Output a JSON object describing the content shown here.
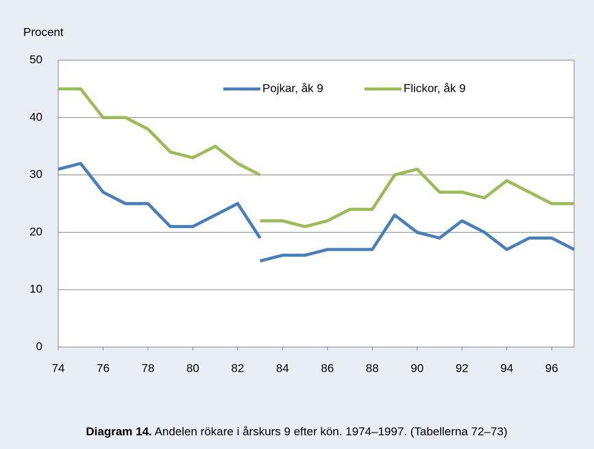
{
  "chart_data": {
    "type": "line",
    "y_label": "Procent",
    "caption_label": "Diagram 14.",
    "caption": "Andelen rökare i årskurs 9 efter kön. 1974–1997. (Tabellerna 72–73)",
    "x": [
      74,
      75,
      76,
      77,
      78,
      79,
      80,
      81,
      82,
      83,
      null,
      83,
      84,
      85,
      86,
      87,
      88,
      89,
      90,
      91,
      92,
      93,
      94,
      95,
      96,
      97
    ],
    "series": [
      {
        "name": "Pojkar, åk 9",
        "color": "#4a7ebb",
        "values": [
          31,
          32,
          27,
          25,
          25,
          21,
          21,
          23,
          25,
          19,
          null,
          15,
          16,
          16,
          17,
          17,
          17,
          23,
          20,
          19,
          22,
          20,
          17,
          19,
          19,
          17
        ]
      },
      {
        "name": "Flickor, åk 9",
        "color": "#9bbb59",
        "values": [
          45,
          45,
          40,
          40,
          38,
          34,
          33,
          35,
          32,
          30,
          null,
          22,
          22,
          21,
          22,
          24,
          24,
          30,
          31,
          27,
          27,
          26,
          29,
          27,
          25,
          25
        ]
      }
    ],
    "xlim": [
      74,
      97
    ],
    "xticks": [
      74,
      76,
      78,
      80,
      82,
      84,
      86,
      88,
      90,
      92,
      94,
      96
    ],
    "ylim": [
      0,
      50
    ],
    "yticks": [
      0,
      10,
      20,
      30,
      40,
      50
    ],
    "grid": true
  }
}
